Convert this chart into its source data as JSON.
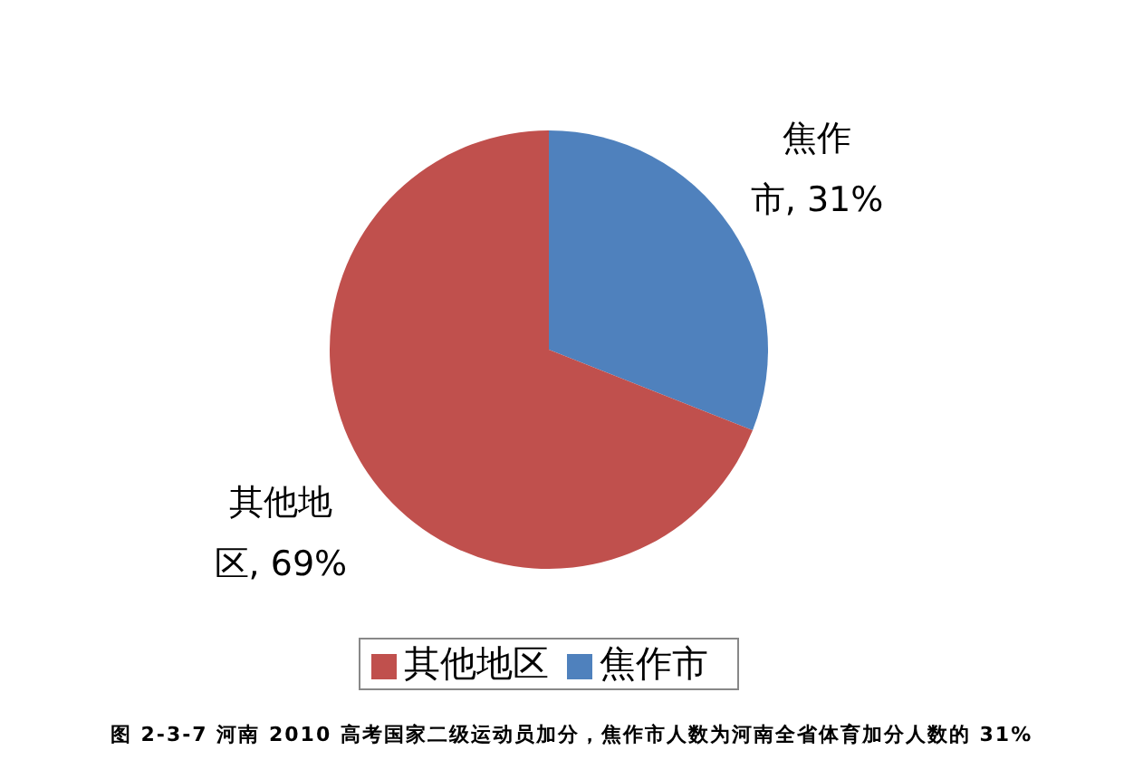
{
  "chart_data": {
    "type": "pie",
    "categories": [
      "焦作市",
      "其他地区"
    ],
    "values": [
      31,
      69
    ],
    "colors": [
      "#4f81bd",
      "#c0504d"
    ],
    "value_labels": [
      "焦作市, 31%",
      "其他地区, 69%"
    ],
    "legend": "bottom",
    "annotations": [
      "图 2-3-7 河南 2010 高考国家二级运动员加分，焦作市人数为河南全省体育加分人数的 31%"
    ]
  }
}
